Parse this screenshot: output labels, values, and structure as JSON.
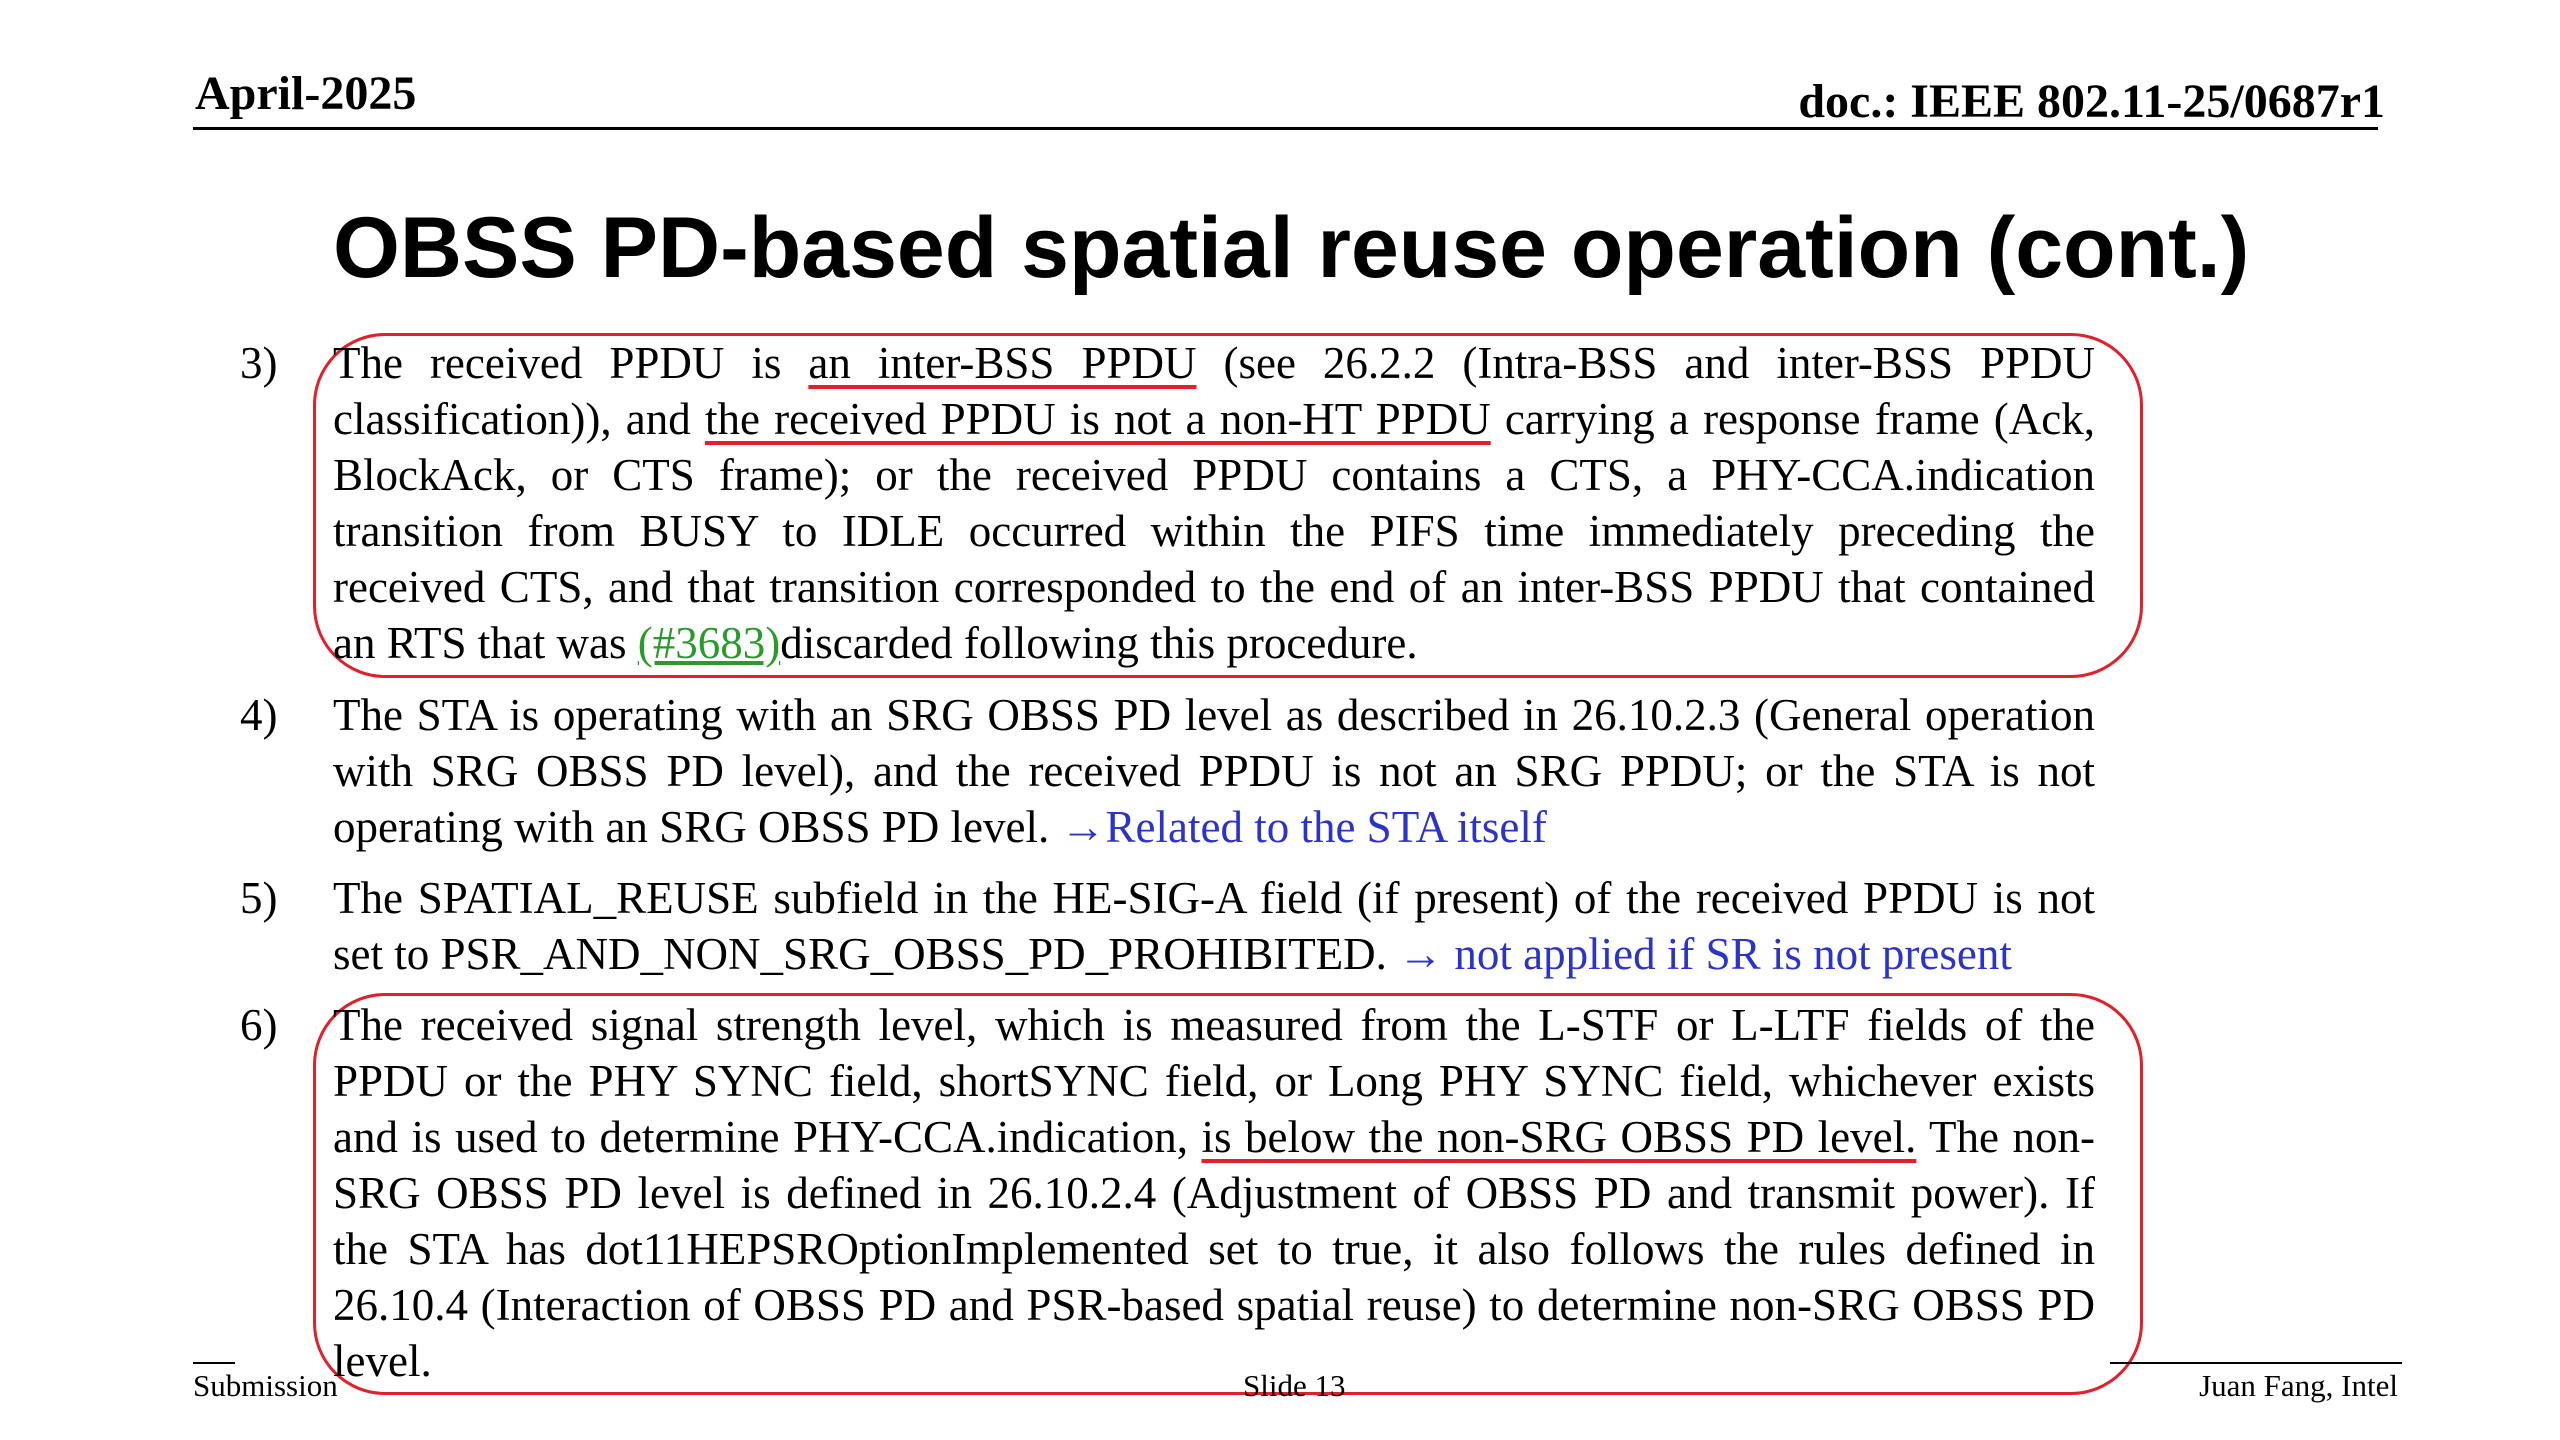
{
  "header": {
    "date": "April-2025",
    "doc_id": "doc.: IEEE 802.11-25/0687r1"
  },
  "title": "OBSS PD-based spatial reuse operation (cont.)",
  "items": [
    {
      "num": "3)",
      "t1": "The received PPDU is ",
      "u1": "an inter-BSS PPDU",
      "t2": " (see 26.2.2 (Intra-BSS and inter-BSS PPDU classification)), and ",
      "u2": "the received PPDU is not a non-HT PPDU",
      "t3": " carrying a response frame (Ack, BlockAck, or CTS frame); or the received PPDU contains a CTS, a PHY-CCA.indication transition from BUSY to IDLE occurred within the PIFS time immediately preceding the received CTS, and that transition corresponded to the end of an inter-BSS PPDU that contained an RTS that was ",
      "link": "(#3683)",
      "t4": "discarded following this procedure."
    },
    {
      "num": "4)",
      "text": "The STA is operating with an SRG OBSS PD level as described in 26.10.2.3 (General operation with SRG OBSS PD level), and the received PPDU is not an SRG PPDU; or the STA is not operating with an SRG OBSS PD level. ",
      "note": "→Related to the STA itself"
    },
    {
      "num": "5)",
      "text": "The SPATIAL_REUSE subfield in the HE-SIG-A field (if present) of the received PPDU is not set to PSR_AND_NON_SRG_OBSS_PD_PROHIBITED. ",
      "note": "→ not applied if SR is not present"
    },
    {
      "num": "6)",
      "t1": "The received signal strength level, which is measured from the L-STF or L-LTF fields of the PPDU or the PHY SYNC field, shortSYNC field, or Long PHY SYNC field, whichever exists and is used to determine PHY-CCA.indication, ",
      "u1": "is below the non-SRG OBSS PD level.",
      "t2": " The non-SRG OBSS PD level is defined in 26.10.2.4 (Adjustment of OBSS PD and transmit power). If the STA has dot11HEPSROptionImplemented set to true, it also follows the rules defined in 26.10.4 (Interaction of OBSS PD and PSR-based spatial reuse) to determine non-SRG OBSS PD level."
    }
  ],
  "footer": {
    "left": "Submission",
    "center": "Slide 13",
    "right": "Juan Fang, Intel"
  },
  "colors": {
    "highlight_red": "#e0202a",
    "link_green": "#2a9a2a",
    "note_blue": "#2b33c8"
  }
}
